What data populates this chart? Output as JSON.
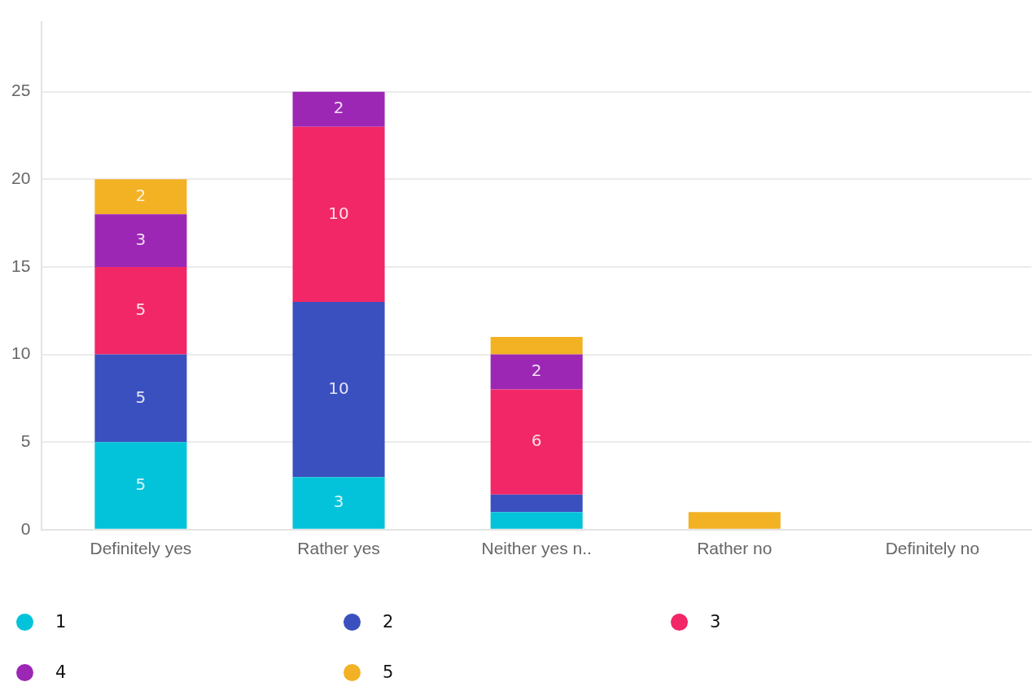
{
  "chart_data": {
    "type": "bar",
    "stacked": true,
    "categories": [
      "Definitely yes",
      "Rather yes",
      "Neither yes n..",
      "Rather no",
      "Definitely no"
    ],
    "series": [
      {
        "name": "1",
        "color": "#03c3da",
        "values": [
          5,
          3,
          1,
          0,
          0
        ],
        "value_labels": [
          "5",
          "3",
          null,
          null,
          null
        ]
      },
      {
        "name": "2",
        "color": "#3b50bf",
        "values": [
          5,
          10,
          1,
          0,
          0
        ],
        "value_labels": [
          "5",
          "10",
          null,
          null,
          null
        ]
      },
      {
        "name": "3",
        "color": "#f22767",
        "values": [
          5,
          10,
          6,
          0,
          0
        ],
        "value_labels": [
          "5",
          "10",
          "6",
          null,
          null
        ]
      },
      {
        "name": "4",
        "color": "#9c27b4",
        "values": [
          3,
          2,
          2,
          0,
          0
        ],
        "value_labels": [
          "3",
          "2",
          "2",
          null,
          null
        ]
      },
      {
        "name": "5",
        "color": "#f3b124",
        "values": [
          2,
          0,
          1,
          1,
          0
        ],
        "value_labels": [
          "2",
          null,
          null,
          null,
          null
        ]
      }
    ],
    "ylim": [
      0,
      29
    ],
    "yticks": [
      0,
      5,
      10,
      15,
      20,
      25
    ],
    "grid": "y",
    "legend": "bottom"
  }
}
